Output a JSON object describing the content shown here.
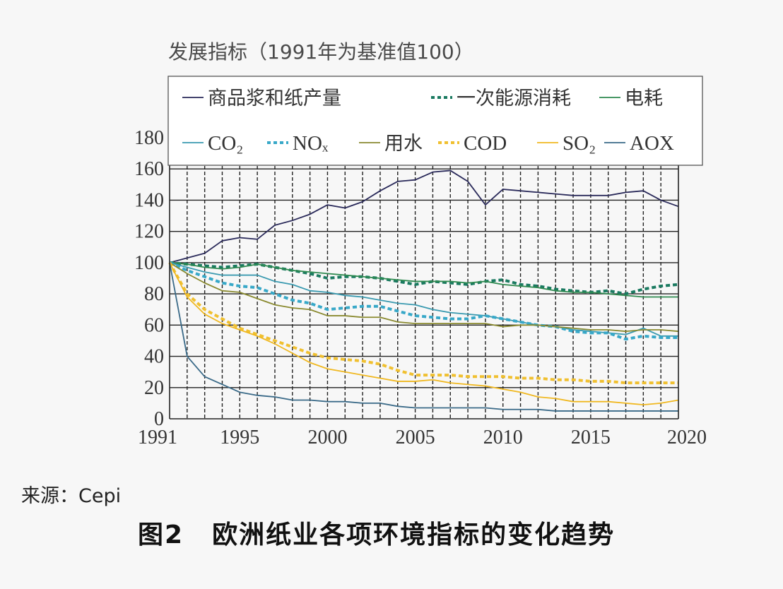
{
  "chart_title": "发展指标（1991年为基准值100）",
  "source_label": "来源：Cepi",
  "caption": {
    "number": "图2",
    "text": "欧洲纸业各项环境指标的变化趋势"
  },
  "chart_data": {
    "type": "line",
    "title": "发展指标（1991年为基准值100）",
    "xlabel": "",
    "ylabel": "",
    "xlim": [
      1991,
      2020
    ],
    "ylim": [
      0,
      180
    ],
    "x_ticks": [
      1991,
      1995,
      2000,
      2005,
      2010,
      2015,
      2020
    ],
    "y_ticks": [
      0,
      20,
      40,
      60,
      80,
      100,
      120,
      140,
      160,
      180
    ],
    "grid": "vertical dashed every year, horizontal solid every 20",
    "legend_position": "top",
    "x": [
      1991,
      1992,
      1993,
      1994,
      1995,
      1996,
      1997,
      1998,
      1999,
      2000,
      2001,
      2002,
      2003,
      2004,
      2005,
      2006,
      2007,
      2008,
      2009,
      2010,
      2011,
      2012,
      2013,
      2014,
      2015,
      2016,
      2017,
      2018,
      2019,
      2020
    ],
    "series": [
      {
        "name": "商品浆和纸产量",
        "color": "#2a2a5a",
        "style": "solid",
        "values": [
          100,
          103,
          106,
          114,
          116,
          115,
          124,
          127,
          131,
          137,
          135,
          139,
          146,
          152,
          153,
          158,
          159,
          152,
          137,
          147,
          146,
          145,
          144,
          143,
          143,
          143,
          145,
          146,
          140,
          136
        ]
      },
      {
        "name": "一次能源消耗",
        "color": "#1a7a60",
        "style": "dotted",
        "values": [
          100,
          99,
          98,
          97,
          98,
          99,
          97,
          95,
          93,
          90,
          91,
          91,
          90,
          88,
          86,
          88,
          87,
          86,
          88,
          89,
          86,
          85,
          83,
          82,
          81,
          82,
          80,
          83,
          85,
          86
        ]
      },
      {
        "name": "电耗",
        "color": "#2f8a50",
        "style": "solid",
        "values": [
          100,
          99,
          97,
          96,
          97,
          99,
          97,
          95,
          94,
          93,
          92,
          91,
          90,
          89,
          88,
          88,
          88,
          87,
          88,
          86,
          85,
          84,
          82,
          81,
          81,
          80,
          79,
          78,
          78,
          78
        ]
      },
      {
        "name": "CO₂",
        "color": "#3a9ab0",
        "style": "solid",
        "values": [
          100,
          97,
          94,
          92,
          92,
          92,
          88,
          86,
          82,
          81,
          79,
          78,
          76,
          74,
          73,
          70,
          68,
          67,
          66,
          64,
          62,
          60,
          59,
          57,
          56,
          55,
          54,
          58,
          53,
          53
        ]
      },
      {
        "name": "NOₓ",
        "color": "#38a8c8",
        "style": "dotted",
        "values": [
          100,
          95,
          91,
          87,
          85,
          84,
          80,
          76,
          74,
          70,
          71,
          72,
          72,
          69,
          66,
          65,
          64,
          64,
          66,
          64,
          62,
          60,
          59,
          56,
          55,
          55,
          51,
          53,
          52,
          52
        ]
      },
      {
        "name": "用水",
        "color": "#8a8a30",
        "style": "solid",
        "values": [
          100,
          93,
          87,
          82,
          81,
          77,
          73,
          71,
          70,
          66,
          66,
          65,
          65,
          62,
          61,
          61,
          61,
          61,
          61,
          59,
          60,
          60,
          59,
          58,
          57,
          57,
          56,
          57,
          57,
          56
        ]
      },
      {
        "name": "COD",
        "color": "#f0c030",
        "style": "dotted",
        "values": [
          100,
          80,
          70,
          64,
          58,
          54,
          50,
          46,
          42,
          39,
          38,
          37,
          35,
          31,
          28,
          28,
          28,
          27,
          27,
          27,
          26,
          26,
          25,
          25,
          24,
          24,
          23,
          23,
          23,
          23
        ]
      },
      {
        "name": "SO₂",
        "color": "#f0b820",
        "style": "solid",
        "values": [
          100,
          78,
          67,
          61,
          57,
          53,
          48,
          42,
          36,
          32,
          30,
          28,
          26,
          24,
          24,
          25,
          23,
          22,
          21,
          19,
          17,
          14,
          13,
          11,
          11,
          11,
          10,
          9,
          10,
          12
        ]
      },
      {
        "name": "AOX",
        "color": "#3a6a88",
        "style": "solid",
        "values": [
          100,
          40,
          27,
          22,
          17,
          15,
          14,
          12,
          12,
          11,
          11,
          10,
          10,
          8,
          7,
          7,
          7,
          7,
          7,
          6,
          6,
          6,
          5,
          5,
          5,
          5,
          5,
          5,
          5,
          5
        ]
      }
    ]
  }
}
